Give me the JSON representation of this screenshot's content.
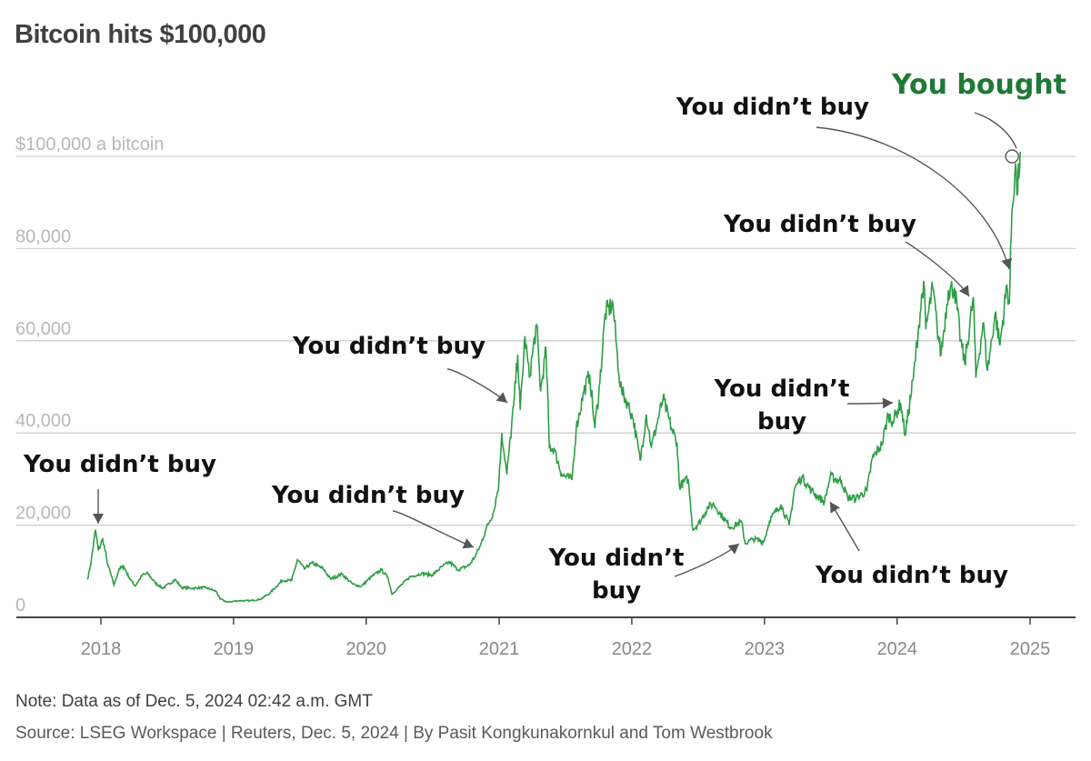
{
  "header": {
    "title": "Bitcoin hits $100,000"
  },
  "footer": {
    "note": "Note: Data as of Dec. 5, 2024 02:42 a.m. GMT",
    "source": "Source: LSEG Workspace | Reuters, Dec. 5, 2024 | By Pasit Kongkunakornkul and Tom Westbrook"
  },
  "colors": {
    "line": "#2e9e46",
    "highlight": "#1e7a35",
    "annotation": "#111111",
    "grid": "#cfcfcf"
  },
  "chart_data": {
    "type": "line",
    "title": "Bitcoin hits $100,000",
    "xlabel": "",
    "ylabel": "",
    "ylim": [
      0,
      100000
    ],
    "xlim": [
      "2017-10-01",
      "2025-03-01"
    ],
    "grid": true,
    "y_ticks": [
      {
        "value": 0,
        "label": "0"
      },
      {
        "value": 20000,
        "label": "20,000"
      },
      {
        "value": 40000,
        "label": "40,000"
      },
      {
        "value": 60000,
        "label": "60,000"
      },
      {
        "value": 80000,
        "label": "80,000"
      },
      {
        "value": 100000,
        "label": "$100,000 a bitcoin"
      }
    ],
    "x_ticks": [
      {
        "date": "2018-01-01",
        "label": "2018"
      },
      {
        "date": "2019-01-01",
        "label": "2019"
      },
      {
        "date": "2020-01-01",
        "label": "2020"
      },
      {
        "date": "2021-01-01",
        "label": "2021"
      },
      {
        "date": "2022-01-01",
        "label": "2022"
      },
      {
        "date": "2023-01-01",
        "label": "2023"
      },
      {
        "date": "2024-01-01",
        "label": "2024"
      },
      {
        "date": "2025-01-01",
        "label": "2025"
      }
    ],
    "series": [
      {
        "points": [
          [
            "2017-11-25",
            8200
          ],
          [
            "2017-12-05",
            12000
          ],
          [
            "2017-12-17",
            19000
          ],
          [
            "2017-12-25",
            14500
          ],
          [
            "2018-01-06",
            17000
          ],
          [
            "2018-01-20",
            11500
          ],
          [
            "2018-02-06",
            7000
          ],
          [
            "2018-02-20",
            10500
          ],
          [
            "2018-03-05",
            11000
          ],
          [
            "2018-03-20",
            8600
          ],
          [
            "2018-04-05",
            6800
          ],
          [
            "2018-04-25",
            9200
          ],
          [
            "2018-05-10",
            9500
          ],
          [
            "2018-05-30",
            7500
          ],
          [
            "2018-06-20",
            6300
          ],
          [
            "2018-07-25",
            8200
          ],
          [
            "2018-08-10",
            6500
          ],
          [
            "2018-09-10",
            6300
          ],
          [
            "2018-10-15",
            6500
          ],
          [
            "2018-11-15",
            5600
          ],
          [
            "2018-11-25",
            4000
          ],
          [
            "2018-12-15",
            3300
          ],
          [
            "2019-01-15",
            3600
          ],
          [
            "2019-02-15",
            3600
          ],
          [
            "2019-03-15",
            3900
          ],
          [
            "2019-04-10",
            5200
          ],
          [
            "2019-05-15",
            8000
          ],
          [
            "2019-06-10",
            8000
          ],
          [
            "2019-06-26",
            12500
          ],
          [
            "2019-07-15",
            10500
          ],
          [
            "2019-08-05",
            11800
          ],
          [
            "2019-09-05",
            10500
          ],
          [
            "2019-09-25",
            8300
          ],
          [
            "2019-10-26",
            9400
          ],
          [
            "2019-11-25",
            7200
          ],
          [
            "2019-12-18",
            6700
          ],
          [
            "2020-01-15",
            8800
          ],
          [
            "2020-02-12",
            10300
          ],
          [
            "2020-03-01",
            8600
          ],
          [
            "2020-03-12",
            5000
          ],
          [
            "2020-04-01",
            6600
          ],
          [
            "2020-05-01",
            8800
          ],
          [
            "2020-06-01",
            9500
          ],
          [
            "2020-07-01",
            9200
          ],
          [
            "2020-07-28",
            11000
          ],
          [
            "2020-08-17",
            12000
          ],
          [
            "2020-09-10",
            10300
          ],
          [
            "2020-10-10",
            11300
          ],
          [
            "2020-10-25",
            13000
          ],
          [
            "2020-11-10",
            15500
          ],
          [
            "2020-11-25",
            19000
          ],
          [
            "2020-12-17",
            23000
          ],
          [
            "2020-12-31",
            29000
          ],
          [
            "2021-01-08",
            40000
          ],
          [
            "2021-01-22",
            31000
          ],
          [
            "2021-02-10",
            46000
          ],
          [
            "2021-02-21",
            57000
          ],
          [
            "2021-02-28",
            45000
          ],
          [
            "2021-03-13",
            61000
          ],
          [
            "2021-03-25",
            52000
          ],
          [
            "2021-04-14",
            63500
          ],
          [
            "2021-04-25",
            49000
          ],
          [
            "2021-05-10",
            58000
          ],
          [
            "2021-05-19",
            37000
          ],
          [
            "2021-06-01",
            36500
          ],
          [
            "2021-06-22",
            31000
          ],
          [
            "2021-07-20",
            29800
          ],
          [
            "2021-08-01",
            41000
          ],
          [
            "2021-08-22",
            49000
          ],
          [
            "2021-09-07",
            52700
          ],
          [
            "2021-09-21",
            41000
          ],
          [
            "2021-10-05",
            51000
          ],
          [
            "2021-10-20",
            66000
          ],
          [
            "2021-11-10",
            68000
          ],
          [
            "2021-11-26",
            53000
          ],
          [
            "2021-12-04",
            49000
          ],
          [
            "2021-12-20",
            46500
          ],
          [
            "2022-01-05",
            43000
          ],
          [
            "2022-01-24",
            34000
          ],
          [
            "2022-02-10",
            44000
          ],
          [
            "2022-02-24",
            37000
          ],
          [
            "2022-03-28",
            47500
          ],
          [
            "2022-04-20",
            41000
          ],
          [
            "2022-05-05",
            38000
          ],
          [
            "2022-05-12",
            28500
          ],
          [
            "2022-06-05",
            30000
          ],
          [
            "2022-06-18",
            19000
          ],
          [
            "2022-07-10",
            21000
          ],
          [
            "2022-07-30",
            24000
          ],
          [
            "2022-08-15",
            24500
          ],
          [
            "2022-09-10",
            21500
          ],
          [
            "2022-09-30",
            19500
          ],
          [
            "2022-10-30",
            20700
          ],
          [
            "2022-11-09",
            16000
          ],
          [
            "2022-12-01",
            17000
          ],
          [
            "2022-12-31",
            16500
          ],
          [
            "2023-01-15",
            21000
          ],
          [
            "2023-02-15",
            24500
          ],
          [
            "2023-03-10",
            20000
          ],
          [
            "2023-03-25",
            28000
          ],
          [
            "2023-04-14",
            30500
          ],
          [
            "2023-05-10",
            27500
          ],
          [
            "2023-06-15",
            25000
          ],
          [
            "2023-07-01",
            30500
          ],
          [
            "2023-08-01",
            29500
          ],
          [
            "2023-08-18",
            26000
          ],
          [
            "2023-09-10",
            25800
          ],
          [
            "2023-10-10",
            27500
          ],
          [
            "2023-10-25",
            34500
          ],
          [
            "2023-11-20",
            37500
          ],
          [
            "2023-12-08",
            44000
          ],
          [
            "2023-12-20",
            42500
          ],
          [
            "2024-01-11",
            46500
          ],
          [
            "2024-01-23",
            39500
          ],
          [
            "2024-02-15",
            52000
          ],
          [
            "2024-02-28",
            62000
          ],
          [
            "2024-03-14",
            73000
          ],
          [
            "2024-03-20",
            62500
          ],
          [
            "2024-04-08",
            71500
          ],
          [
            "2024-04-20",
            63000
          ],
          [
            "2024-05-01",
            57000
          ],
          [
            "2024-05-21",
            71000
          ],
          [
            "2024-06-07",
            71500
          ],
          [
            "2024-06-24",
            60000
          ],
          [
            "2024-07-05",
            55000
          ],
          [
            "2024-07-29",
            69500
          ],
          [
            "2024-08-05",
            52000
          ],
          [
            "2024-08-25",
            64000
          ],
          [
            "2024-09-06",
            53500
          ],
          [
            "2024-09-27",
            66000
          ],
          [
            "2024-10-10",
            59000
          ],
          [
            "2024-10-29",
            72000
          ],
          [
            "2024-11-05",
            68000
          ],
          [
            "2024-11-12",
            88000
          ],
          [
            "2024-11-22",
            98500
          ],
          [
            "2024-11-26",
            91500
          ],
          [
            "2024-12-05",
            101000
          ]
        ]
      }
    ],
    "annotations": [
      {
        "text": [
          "You didn’t buy"
        ],
        "target": [
          "2017-12-17",
          19000
        ]
      },
      {
        "text": [
          "You didn’t buy"
        ],
        "target": [
          "2020-11-25",
          16000
        ]
      },
      {
        "text": [
          "You didn’t buy"
        ],
        "target": [
          "2021-01-08",
          45000
        ]
      },
      {
        "text": [
          "You didn’t",
          "buy"
        ],
        "target": [
          "2022-11-09",
          16000
        ]
      },
      {
        "text": [
          "You didn’t buy"
        ],
        "target": [
          "2023-08-18",
          26000
        ]
      },
      {
        "text": [
          "You didn’t",
          "buy"
        ],
        "target": [
          "2024-01-11",
          46500
        ]
      },
      {
        "text": [
          "You didn’t buy"
        ],
        "target": [
          "2024-07-15",
          70000
        ]
      },
      {
        "text": [
          "You didn’t buy"
        ],
        "target": [
          "2024-10-29",
          75000
        ]
      },
      {
        "text": [
          "You bought"
        ],
        "target": [
          "2024-12-05",
          100000
        ],
        "highlight": true
      }
    ]
  }
}
